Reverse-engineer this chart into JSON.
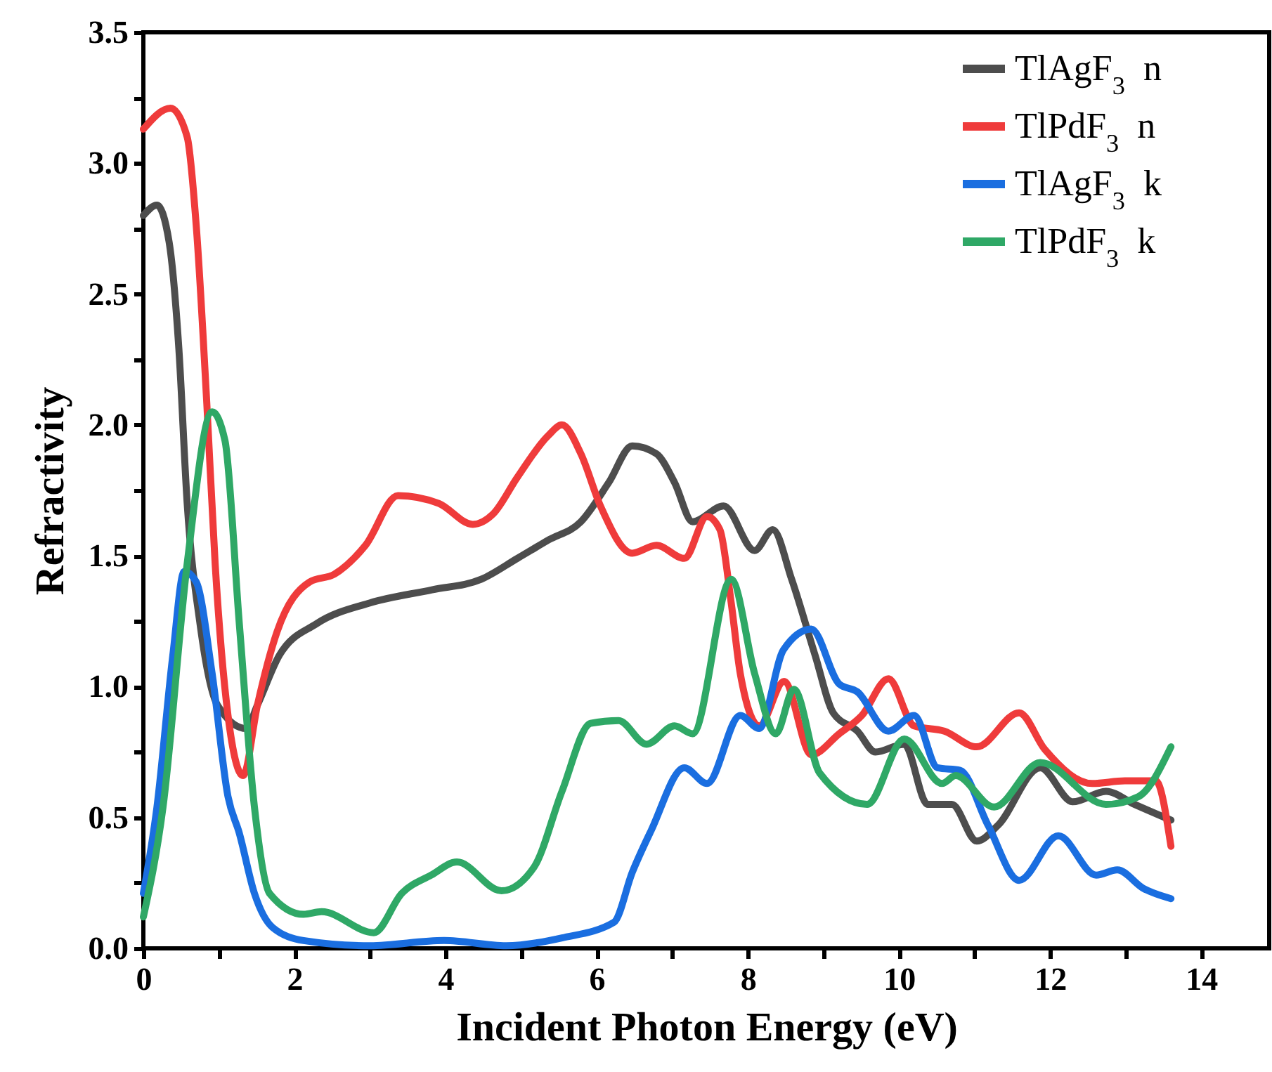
{
  "chart_data": {
    "type": "line",
    "xlabel": "Incident Photon Energy (eV)",
    "ylabel": "Refractivity",
    "xlim": [
      0,
      14.9
    ],
    "ylim": [
      0,
      3.5
    ],
    "xticks": [
      0,
      {
        "value": 1,
        "label": null
      },
      2,
      {
        "value": 3,
        "label": null
      },
      4,
      {
        "value": 5,
        "label": null
      },
      6,
      {
        "value": 7,
        "label": null
      },
      8,
      {
        "value": 9,
        "label": null
      },
      10,
      {
        "value": 11,
        "label": null
      },
      12,
      {
        "value": 13,
        "label": null
      },
      14
    ],
    "yticks": [
      {
        "value": 0,
        "label": "0.0"
      },
      {
        "value": 0.25,
        "label": null
      },
      {
        "value": 0.5,
        "label": "0.5"
      },
      {
        "value": 0.75,
        "label": null
      },
      {
        "value": 1,
        "label": "1.0"
      },
      {
        "value": 1.25,
        "label": null
      },
      {
        "value": 1.5,
        "label": "1.5"
      },
      {
        "value": 1.75,
        "label": null
      },
      {
        "value": 2,
        "label": "2.0"
      },
      {
        "value": 2.25,
        "label": null
      },
      {
        "value": 2.5,
        "label": "2.5"
      },
      {
        "value": 2.75,
        "label": null
      },
      {
        "value": 3,
        "label": "3.0"
      },
      {
        "value": 3.25,
        "label": null
      },
      {
        "value": 3.5,
        "label": "3.5"
      }
    ],
    "grid": false,
    "legend": "top right",
    "marker": "none",
    "line_style": "solid",
    "series": [
      {
        "name": "TlAgF$_{3}$  n",
        "color": "#4d4d4d",
        "x": [
          0,
          0.18,
          0.34,
          0.47,
          0.58,
          0.75,
          0.98,
          1.36,
          1.51,
          1.8,
          2.29,
          3.0,
          3.82,
          4.47,
          4.95,
          5.36,
          5.79,
          6.16,
          6.47,
          6.79,
          7.03,
          7.27,
          7.68,
          8.09,
          8.33,
          8.58,
          8.89,
          9.13,
          9.45,
          9.69,
          10.07,
          10.38,
          10.7,
          11.03,
          11.31,
          11.87,
          12.3,
          12.74,
          13.12,
          13.6
        ],
        "values": [
          2.8,
          2.84,
          2.7,
          2.29,
          1.7,
          1.24,
          0.93,
          0.84,
          0.93,
          1.12,
          1.24,
          1.32,
          1.37,
          1.41,
          1.49,
          1.56,
          1.63,
          1.78,
          1.92,
          1.89,
          1.78,
          1.63,
          1.69,
          1.52,
          1.6,
          1.41,
          1.12,
          0.9,
          0.83,
          0.75,
          0.78,
          0.55,
          0.55,
          0.41,
          0.47,
          0.69,
          0.56,
          0.6,
          0.55,
          0.49
        ]
      },
      {
        "name": "TlPdF$_{3}$  n",
        "color": "#ef3b3b",
        "x": [
          0,
          0.36,
          0.58,
          0.7,
          0.84,
          0.95,
          1.12,
          1.32,
          1.51,
          1.77,
          2.2,
          2.53,
          2.94,
          3.37,
          3.91,
          4.36,
          4.63,
          4.95,
          5.36,
          5.54,
          5.79,
          6.05,
          6.47,
          6.79,
          7.16,
          7.46,
          7.63,
          7.78,
          7.9,
          8.15,
          8.48,
          8.84,
          9.21,
          9.51,
          9.86,
          10.2,
          10.6,
          11.03,
          11.59,
          11.93,
          12.56,
          12.99,
          13.4,
          13.6
        ],
        "values": [
          3.13,
          3.21,
          3.1,
          2.76,
          2.08,
          1.47,
          0.89,
          0.66,
          0.93,
          1.21,
          1.4,
          1.43,
          1.54,
          1.73,
          1.7,
          1.62,
          1.66,
          1.8,
          1.96,
          2.0,
          1.89,
          1.69,
          1.51,
          1.54,
          1.49,
          1.65,
          1.6,
          1.32,
          1.05,
          0.85,
          1.02,
          0.74,
          0.82,
          0.89,
          1.03,
          0.85,
          0.83,
          0.77,
          0.9,
          0.76,
          0.63,
          0.64,
          0.64,
          0.39
        ]
      },
      {
        "name": "TlAgF$_{3}$  k",
        "color": "#1a6ee0",
        "x": [
          0,
          0.18,
          0.39,
          0.54,
          0.7,
          0.91,
          1.12,
          1.27,
          1.47,
          1.71,
          2.12,
          3.0,
          3.98,
          4.8,
          5.54,
          6.23,
          6.47,
          6.72,
          7.16,
          7.46,
          7.9,
          8.15,
          8.47,
          8.84,
          9.21,
          9.45,
          9.86,
          10.2,
          10.51,
          10.81,
          11.18,
          11.59,
          12.11,
          12.61,
          12.89,
          13.23,
          13.6
        ],
        "values": [
          0.21,
          0.54,
          1.12,
          1.44,
          1.4,
          1.05,
          0.58,
          0.44,
          0.21,
          0.08,
          0.03,
          0.01,
          0.03,
          0.01,
          0.04,
          0.1,
          0.29,
          0.45,
          0.69,
          0.63,
          0.89,
          0.84,
          1.14,
          1.22,
          1.01,
          0.98,
          0.83,
          0.89,
          0.69,
          0.68,
          0.47,
          0.26,
          0.43,
          0.28,
          0.3,
          0.23,
          0.19
        ]
      },
      {
        "name": "TlPdF$_{3}$  k",
        "color": "#2fa866",
        "x": [
          0,
          0.26,
          0.58,
          0.91,
          1.08,
          1.27,
          1.47,
          1.67,
          2.12,
          2.36,
          3.05,
          3.42,
          3.81,
          4.15,
          4.74,
          5.17,
          5.54,
          5.92,
          6.29,
          6.66,
          7.03,
          7.27,
          7.78,
          8.09,
          8.37,
          8.61,
          8.95,
          9.58,
          10.07,
          10.57,
          10.75,
          11.26,
          11.87,
          12.74,
          13.17,
          13.6
        ],
        "values": [
          0.12,
          0.54,
          1.47,
          2.05,
          1.94,
          1.24,
          0.54,
          0.21,
          0.13,
          0.14,
          0.06,
          0.21,
          0.28,
          0.33,
          0.22,
          0.31,
          0.6,
          0.86,
          0.87,
          0.78,
          0.85,
          0.82,
          1.41,
          1.05,
          0.82,
          0.99,
          0.67,
          0.55,
          0.8,
          0.63,
          0.66,
          0.54,
          0.71,
          0.55,
          0.58,
          0.77
        ]
      }
    ]
  }
}
